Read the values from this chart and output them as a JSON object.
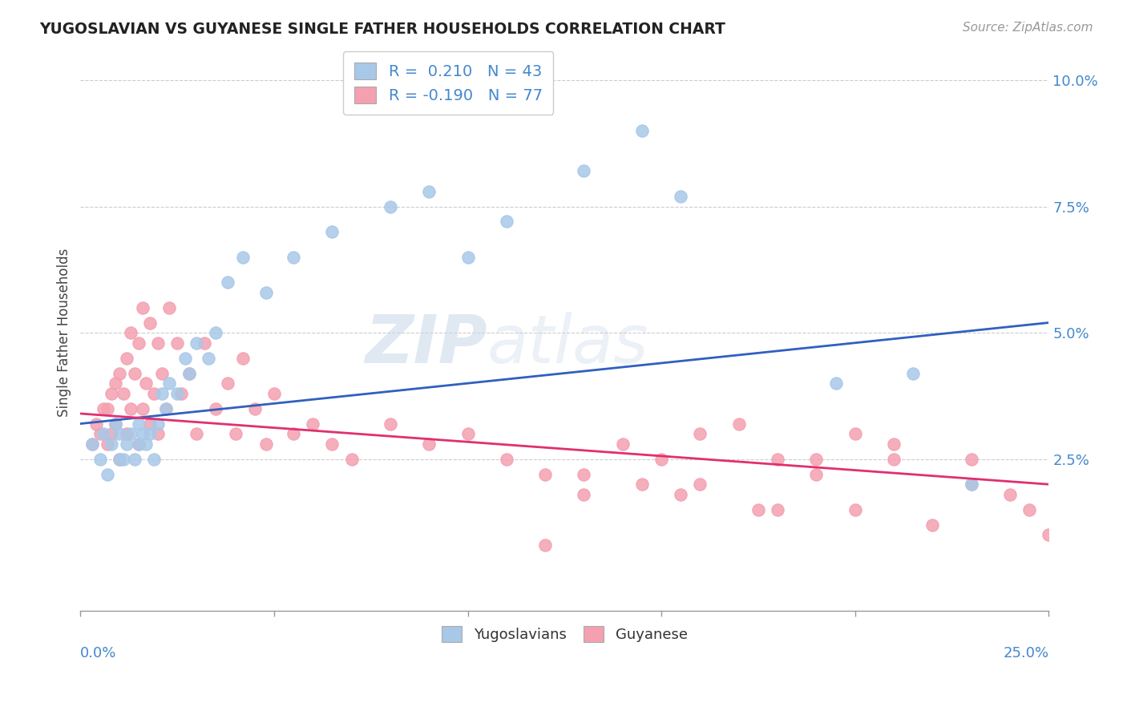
{
  "title": "YUGOSLAVIAN VS GUYANESE SINGLE FATHER HOUSEHOLDS CORRELATION CHART",
  "source": "Source: ZipAtlas.com",
  "ylabel": "Single Father Households",
  "xlim": [
    0.0,
    0.25
  ],
  "ylim": [
    -0.005,
    0.105
  ],
  "legend_blue_label": "R =  0.210   N = 43",
  "legend_pink_label": "R = -0.190   N = 77",
  "blue_color": "#a8c8e8",
  "pink_color": "#f4a0b0",
  "trend_blue": "#3060c0",
  "trend_pink": "#e03070",
  "watermark_zip": "ZIP",
  "watermark_atlas": "atlas",
  "blue_trend_start_y": 0.032,
  "blue_trend_end_y": 0.052,
  "pink_trend_start_y": 0.034,
  "pink_trend_end_y": 0.02,
  "blue_scatter_x": [
    0.003,
    0.005,
    0.006,
    0.007,
    0.008,
    0.009,
    0.01,
    0.01,
    0.011,
    0.012,
    0.013,
    0.014,
    0.015,
    0.015,
    0.016,
    0.017,
    0.018,
    0.019,
    0.02,
    0.021,
    0.022,
    0.023,
    0.025,
    0.027,
    0.028,
    0.03,
    0.033,
    0.035,
    0.038,
    0.042,
    0.048,
    0.055,
    0.065,
    0.08,
    0.09,
    0.1,
    0.11,
    0.13,
    0.145,
    0.155,
    0.195,
    0.215,
    0.23
  ],
  "blue_scatter_y": [
    0.028,
    0.025,
    0.03,
    0.022,
    0.028,
    0.032,
    0.025,
    0.03,
    0.025,
    0.028,
    0.03,
    0.025,
    0.032,
    0.028,
    0.03,
    0.028,
    0.03,
    0.025,
    0.032,
    0.038,
    0.035,
    0.04,
    0.038,
    0.045,
    0.042,
    0.048,
    0.045,
    0.05,
    0.06,
    0.065,
    0.058,
    0.065,
    0.07,
    0.075,
    0.078,
    0.065,
    0.072,
    0.082,
    0.09,
    0.077,
    0.04,
    0.042,
    0.02
  ],
  "pink_scatter_x": [
    0.003,
    0.004,
    0.005,
    0.006,
    0.007,
    0.007,
    0.008,
    0.008,
    0.009,
    0.009,
    0.01,
    0.01,
    0.011,
    0.012,
    0.012,
    0.013,
    0.013,
    0.014,
    0.015,
    0.015,
    0.016,
    0.016,
    0.017,
    0.018,
    0.018,
    0.019,
    0.02,
    0.02,
    0.021,
    0.022,
    0.023,
    0.025,
    0.026,
    0.028,
    0.03,
    0.032,
    0.035,
    0.038,
    0.04,
    0.042,
    0.045,
    0.048,
    0.05,
    0.055,
    0.06,
    0.065,
    0.07,
    0.08,
    0.09,
    0.1,
    0.11,
    0.12,
    0.13,
    0.14,
    0.15,
    0.16,
    0.17,
    0.18,
    0.19,
    0.2,
    0.21,
    0.12,
    0.145,
    0.155,
    0.175,
    0.19,
    0.2,
    0.21,
    0.22,
    0.23,
    0.23,
    0.24,
    0.245,
    0.25,
    0.13,
    0.16,
    0.18
  ],
  "pink_scatter_y": [
    0.028,
    0.032,
    0.03,
    0.035,
    0.028,
    0.035,
    0.03,
    0.038,
    0.032,
    0.04,
    0.025,
    0.042,
    0.038,
    0.03,
    0.045,
    0.035,
    0.05,
    0.042,
    0.028,
    0.048,
    0.035,
    0.055,
    0.04,
    0.032,
    0.052,
    0.038,
    0.03,
    0.048,
    0.042,
    0.035,
    0.055,
    0.048,
    0.038,
    0.042,
    0.03,
    0.048,
    0.035,
    0.04,
    0.03,
    0.045,
    0.035,
    0.028,
    0.038,
    0.03,
    0.032,
    0.028,
    0.025,
    0.032,
    0.028,
    0.03,
    0.025,
    0.022,
    0.018,
    0.028,
    0.025,
    0.02,
    0.032,
    0.025,
    0.022,
    0.03,
    0.028,
    0.008,
    0.02,
    0.018,
    0.015,
    0.025,
    0.015,
    0.025,
    0.012,
    0.02,
    0.025,
    0.018,
    0.015,
    0.01,
    0.022,
    0.03,
    0.015
  ]
}
